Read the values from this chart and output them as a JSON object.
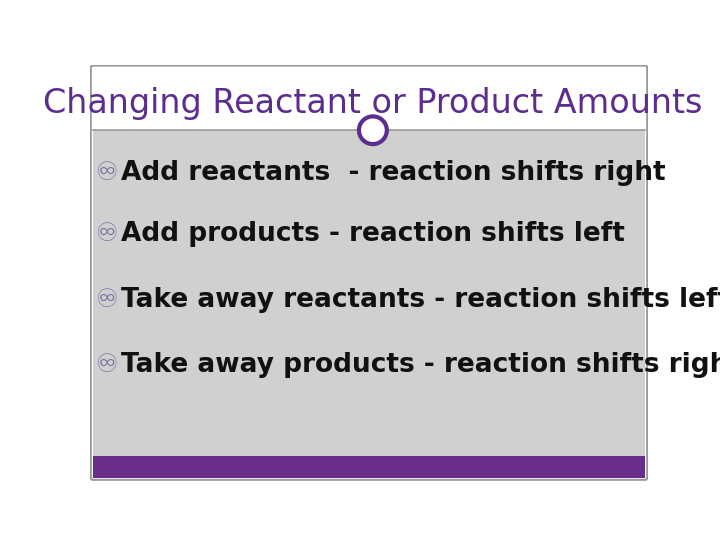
{
  "title": "Changing Reactant or Product Amounts",
  "title_color": "#5b2d8e",
  "title_fontsize": 24,
  "title_fontweight": "normal",
  "content_bg": "#d0d0d0",
  "bottom_bar_color": "#6b2d8b",
  "border_color": "#999999",
  "bullet_color": "#7070a0",
  "lines": [
    {
      "text": "Add reactants  - reaction shifts right",
      "bold": true,
      "fontsize": 19
    },
    {
      "text": "Add products - reaction shifts left",
      "bold": true,
      "fontsize": 19
    },
    {
      "text": "Take away reactants - reaction shifts left",
      "bold": true,
      "fontsize": 19
    },
    {
      "text": "Take away products - reaction shifts right",
      "bold": true,
      "fontsize": 19
    }
  ],
  "circle_color": "#5b2d8e",
  "circle_fill": "#ffffff",
  "fig_width": 7.2,
  "fig_height": 5.4,
  "dpi": 100
}
